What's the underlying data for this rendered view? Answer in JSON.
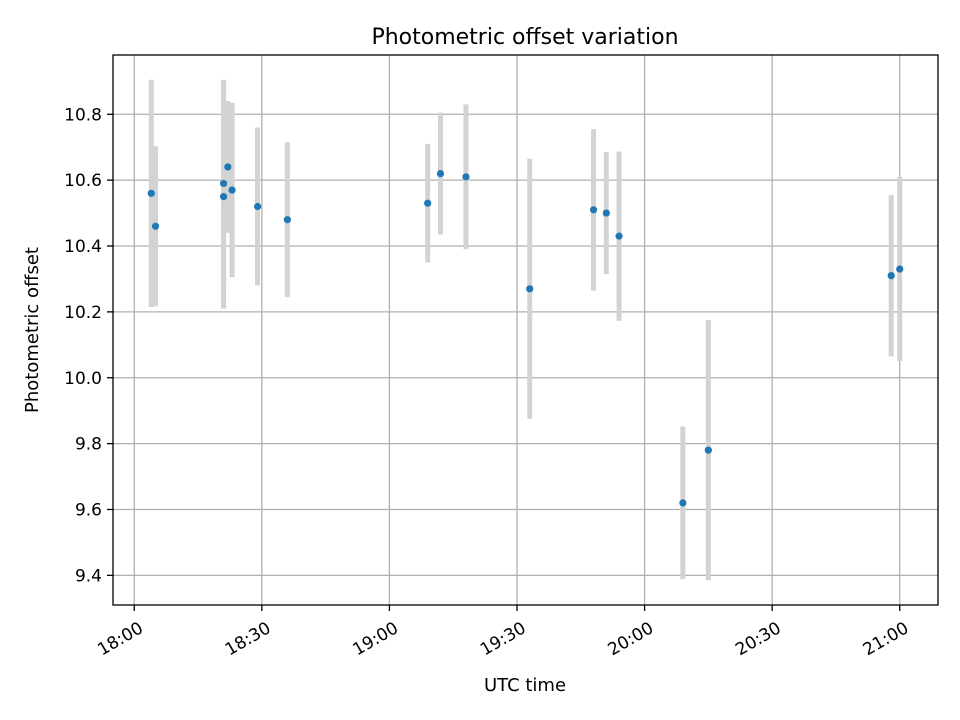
{
  "chart_data": {
    "type": "scatter",
    "title": "Photometric offset variation",
    "xlabel": "UTC time",
    "ylabel": "Photometric offset",
    "x_ticks": [
      "18:00",
      "18:30",
      "19:00",
      "19:30",
      "20:00",
      "20:30",
      "21:00"
    ],
    "y_ticks": [
      "9.4",
      "9.6",
      "9.8",
      "10.0",
      "10.2",
      "10.4",
      "10.6",
      "10.8"
    ],
    "xlim": [
      "17:55",
      "21:09"
    ],
    "ylim": [
      9.31,
      10.98
    ],
    "grid": true,
    "legend": "none",
    "colors": {
      "point": "#1f77b4",
      "errorbar": "#d3d3d3",
      "grid": "#b0b0b0"
    },
    "series": [
      {
        "points": [
          {
            "x": "18:04",
            "y": 10.56,
            "err": 0.345
          },
          {
            "x": "18:05",
            "y": 10.46,
            "err": 0.243
          },
          {
            "x": "18:21",
            "y": 10.55,
            "err": 0.34
          },
          {
            "x": "18:21",
            "y": 10.59,
            "err": 0.315
          },
          {
            "x": "18:22",
            "y": 10.64,
            "err": 0.2
          },
          {
            "x": "18:23",
            "y": 10.57,
            "err": 0.265
          },
          {
            "x": "18:29",
            "y": 10.52,
            "err": 0.24
          },
          {
            "x": "18:36",
            "y": 10.48,
            "err": 0.235
          },
          {
            "x": "19:09",
            "y": 10.53,
            "err": 0.18
          },
          {
            "x": "19:12",
            "y": 10.62,
            "err": 0.185
          },
          {
            "x": "19:18",
            "y": 10.61,
            "err": 0.22
          },
          {
            "x": "19:33",
            "y": 10.27,
            "err": 0.395
          },
          {
            "x": "19:48",
            "y": 10.51,
            "err": 0.245
          },
          {
            "x": "19:51",
            "y": 10.5,
            "err": 0.185
          },
          {
            "x": "19:54",
            "y": 10.43,
            "err": 0.257
          },
          {
            "x": "20:09",
            "y": 9.62,
            "err": 0.232
          },
          {
            "x": "20:15",
            "y": 9.78,
            "err": 0.395
          },
          {
            "x": "20:58",
            "y": 10.31,
            "err": 0.245
          },
          {
            "x": "21:00",
            "y": 10.33,
            "err": 0.28
          }
        ]
      }
    ]
  }
}
